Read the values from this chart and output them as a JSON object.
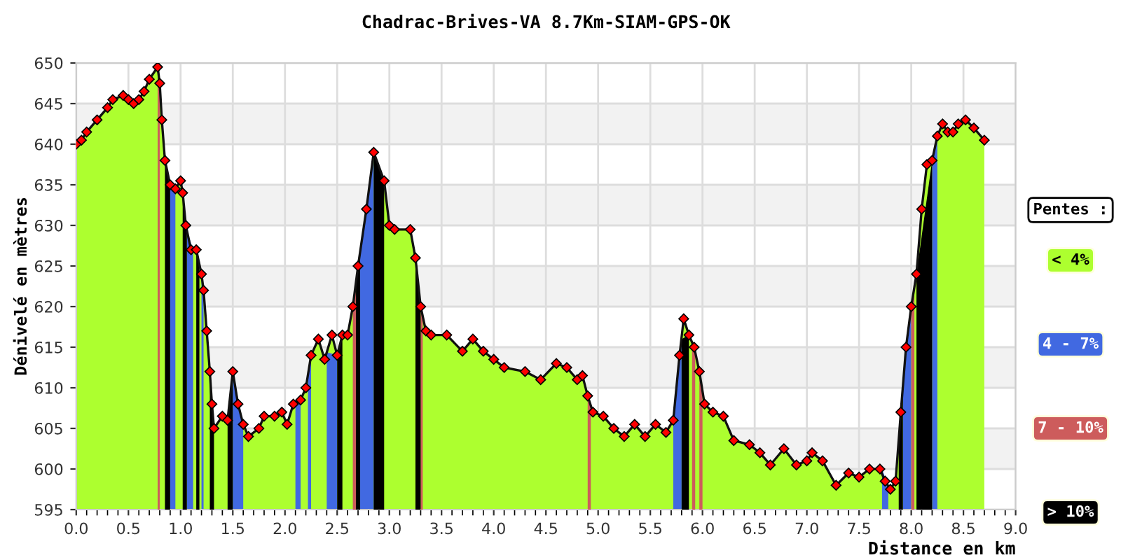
{
  "chart_data": {
    "type": "area",
    "title": "Chadrac-Brives-VA 8.7Km-SIAM-GPS-OK",
    "xlabel": "Distance en km",
    "ylabel": "Dénivelé en mètres",
    "legend_title": "Pentes :",
    "legend": "right",
    "grid": true,
    "xlim": [
      0,
      9
    ],
    "xticks": [
      {
        "value": 0,
        "label": "0.0"
      },
      {
        "value": 0.5,
        "label": "0.5"
      },
      {
        "value": 1,
        "label": "1.0"
      },
      {
        "value": 1.5,
        "label": "1.5"
      },
      {
        "value": 2,
        "label": "2.0"
      },
      {
        "value": 2.5,
        "label": "2.5"
      },
      {
        "value": 3,
        "label": "3.0"
      },
      {
        "value": 3.5,
        "label": "3.5"
      },
      {
        "value": 4,
        "label": "4.0"
      },
      {
        "value": 4.5,
        "label": "4.5"
      },
      {
        "value": 5,
        "label": "5.0"
      },
      {
        "value": 5.5,
        "label": "5.5"
      },
      {
        "value": 6,
        "label": "6.0"
      },
      {
        "value": 6.5,
        "label": "6.5"
      },
      {
        "value": 7,
        "label": "7.0"
      },
      {
        "value": 7.5,
        "label": "7.5"
      },
      {
        "value": 8,
        "label": "8.0"
      },
      {
        "value": 8.5,
        "label": "8.5"
      },
      {
        "value": 9,
        "label": "9.0"
      }
    ],
    "ylim": [
      595,
      650
    ],
    "yticks": [
      595,
      600,
      605,
      610,
      615,
      620,
      625,
      630,
      635,
      640,
      645,
      650
    ],
    "series": [
      {
        "name": "< 4%",
        "color": "#adff2f",
        "marker": "diamond",
        "x": [
          0.0,
          0.05,
          0.1,
          0.2,
          0.3,
          0.35,
          0.45,
          0.5,
          0.55,
          0.6,
          0.65,
          0.7,
          0.78,
          0.8,
          0.82,
          0.85,
          0.9,
          0.95,
          1.0,
          1.02,
          1.05,
          1.1,
          1.15,
          1.2,
          1.22,
          1.25,
          1.28,
          1.3,
          1.32,
          1.4,
          1.45,
          1.5,
          1.55,
          1.6,
          1.65,
          1.75,
          1.8,
          1.9,
          1.97,
          2.02,
          2.08,
          2.15,
          2.2,
          2.25,
          2.32,
          2.38,
          2.45,
          2.5,
          2.55,
          2.6,
          2.65,
          2.7,
          2.78,
          2.85,
          2.95,
          3.0,
          3.05,
          3.2,
          3.25,
          3.3,
          3.35,
          3.4,
          3.55,
          3.7,
          3.8,
          3.9,
          4.0,
          4.1,
          4.3,
          4.45,
          4.6,
          4.7,
          4.8,
          4.85,
          4.9,
          4.95,
          5.05,
          5.15,
          5.25,
          5.35,
          5.45,
          5.55,
          5.65,
          5.72,
          5.78,
          5.82,
          5.87,
          5.92,
          5.97,
          6.02,
          6.1,
          6.2,
          6.3,
          6.45,
          6.55,
          6.65,
          6.78,
          6.9,
          7.0,
          7.05,
          7.15,
          7.28,
          7.4,
          7.5,
          7.6,
          7.7,
          7.75,
          7.8,
          7.85,
          7.9,
          7.95,
          8.0,
          8.05,
          8.1,
          8.15,
          8.2,
          8.25,
          8.3,
          8.35,
          8.4,
          8.45,
          8.52,
          8.6,
          8.7
        ],
        "values": [
          640,
          640.5,
          641.5,
          643,
          644.5,
          645.5,
          646,
          645.5,
          645,
          645.5,
          646.5,
          648,
          649.5,
          647.5,
          643,
          638,
          635,
          634.5,
          635.5,
          634,
          630,
          627,
          627,
          624,
          622,
          617,
          612,
          608,
          605,
          606.5,
          606,
          612,
          608,
          605.5,
          604,
          605,
          606.5,
          606.5,
          607,
          605.5,
          608,
          608.5,
          610,
          614,
          616,
          613.5,
          616.5,
          614,
          616.5,
          616.5,
          620,
          625,
          632,
          639,
          635.5,
          630,
          629.5,
          629.5,
          626,
          620,
          617,
          616.5,
          616.5,
          614.5,
          616,
          614.5,
          613.5,
          612.5,
          612,
          611,
          613,
          612.5,
          611,
          611.5,
          609,
          607,
          606.5,
          605,
          604,
          605.5,
          604,
          605.5,
          604.5,
          606,
          614,
          618.5,
          616.5,
          615,
          612,
          608,
          607,
          606.5,
          603.5,
          603,
          602,
          600.5,
          602.5,
          600.5,
          601,
          602,
          601,
          598,
          599.5,
          599,
          600,
          600,
          598.5,
          597.5,
          598.5,
          607,
          615,
          620,
          624,
          632,
          637.5,
          638,
          641,
          642.5,
          641.5,
          641.5,
          642.5,
          643,
          642,
          640.5
        ]
      },
      {
        "name": "4 - 7%",
        "color": "#4169e1",
        "x": [
          0.9,
          0.95,
          null,
          1.06,
          1.12,
          null,
          1.2,
          1.22,
          null,
          1.5,
          1.6,
          null,
          2.1,
          2.15,
          null,
          2.22,
          2.25,
          null,
          2.4,
          2.5,
          null,
          2.72,
          2.85,
          null,
          5.72,
          5.8,
          null,
          7.72,
          7.78,
          null,
          7.92,
          8.0,
          null,
          8.2,
          8.25
        ],
        "values": [
          635,
          634.5,
          null,
          629.4,
          627,
          null,
          624,
          622,
          null,
          612,
          605.5,
          null,
          608.1,
          608.5,
          null,
          611.6,
          614,
          null,
          614.4,
          614,
          null,
          626.7,
          639,
          null,
          606,
          616,
          null,
          600,
          597.9,
          null,
          610.2,
          620,
          null,
          638,
          641
        ]
      },
      {
        "name": "7 - 10%",
        "color": "#cd5c5c",
        "x": [
          0.78,
          0.8,
          null,
          2.65,
          2.68,
          null,
          3.3,
          3.32,
          null,
          4.9,
          4.93,
          null,
          5.9,
          5.93,
          null,
          5.97,
          6.0,
          null,
          8.0,
          8.03
        ],
        "values": [
          649.5,
          647.5,
          null,
          620,
          622.5,
          null,
          620,
          618.5,
          null,
          609,
          608,
          null,
          615.8,
          614.4,
          null,
          612,
          610,
          null,
          620,
          622.4
        ]
      },
      {
        "name": "> 10%",
        "color": "#000000",
        "x": [
          0.85,
          0.9,
          null,
          1.02,
          1.06,
          null,
          1.15,
          1.18,
          null,
          1.28,
          1.32,
          null,
          1.45,
          1.5,
          null,
          2.5,
          2.55,
          null,
          2.68,
          2.72,
          null,
          2.85,
          2.95,
          null,
          3.25,
          3.3,
          null,
          5.8,
          5.87,
          null,
          7.88,
          7.92,
          null,
          8.05,
          8.2
        ],
        "values": [
          638,
          635,
          null,
          634,
          629.4,
          null,
          627,
          625.2,
          null,
          612,
          605,
          null,
          606,
          612,
          null,
          614,
          616.5,
          null,
          622.5,
          626.7,
          null,
          639,
          635.5,
          null,
          626,
          620,
          null,
          616,
          616.5,
          null,
          603.6,
          610.2,
          null,
          624,
          638
        ]
      }
    ]
  }
}
